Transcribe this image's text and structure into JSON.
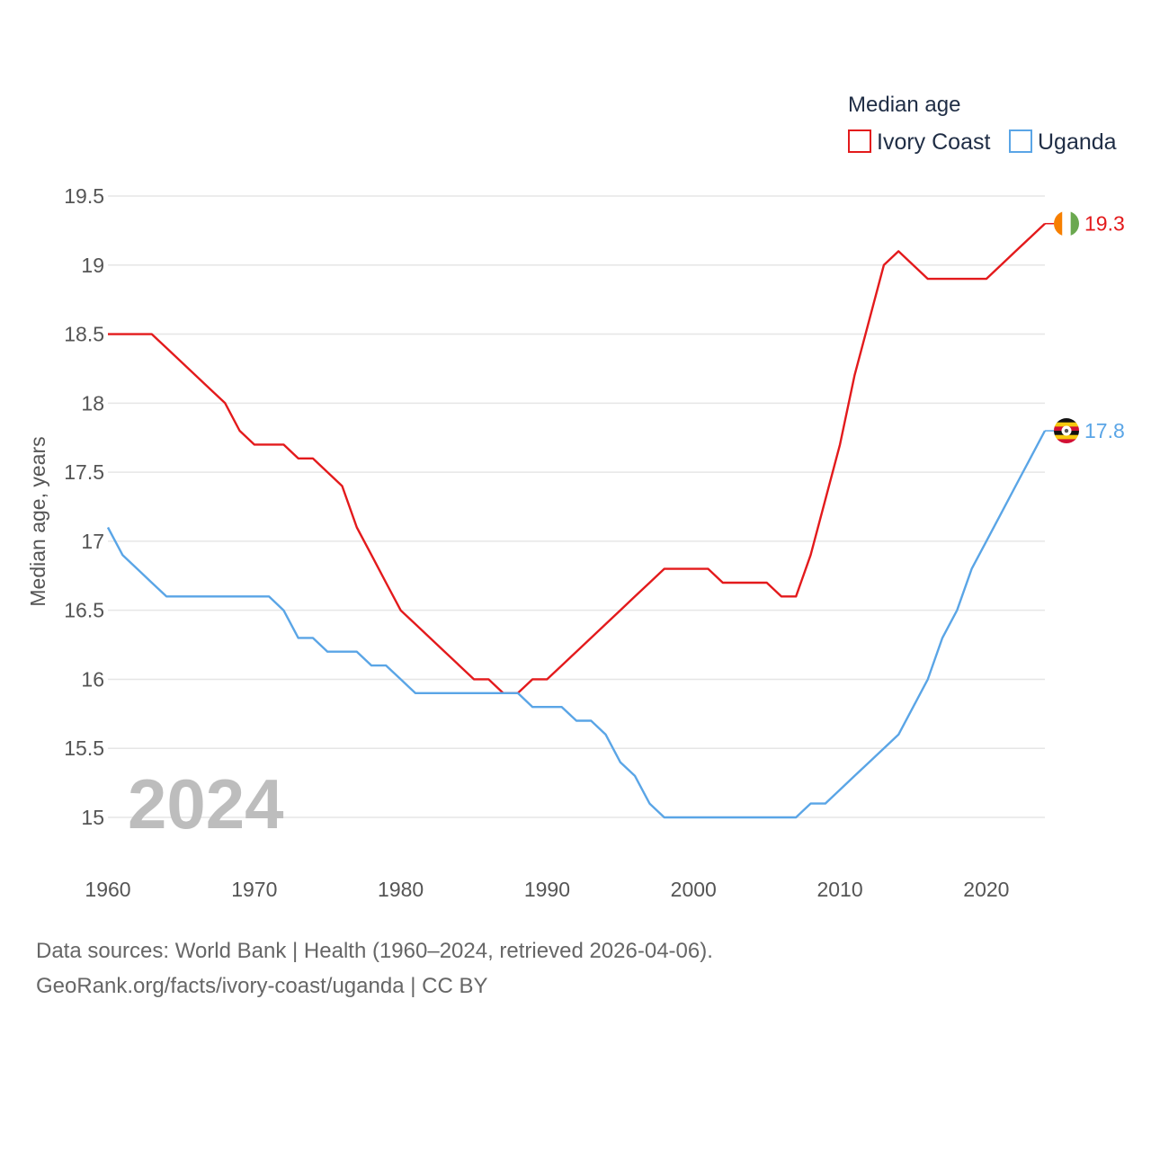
{
  "chart_data": {
    "type": "line",
    "legend_title": "Median age",
    "ylabel": "Median age, years",
    "xlabel": "",
    "ylim": [
      14.5,
      19.5
    ],
    "xlim": [
      1960,
      2024
    ],
    "y_ticks": [
      15,
      15.5,
      16,
      16.5,
      17,
      17.5,
      18,
      18.5,
      19,
      19.5
    ],
    "y_tick_labels": [
      "15",
      "15.5",
      "16",
      "16.5",
      "17",
      "17.5",
      "18",
      "18.5",
      "19",
      "19.5"
    ],
    "x_ticks": [
      1960,
      1970,
      1980,
      1990,
      2000,
      2010,
      2020
    ],
    "x_tick_labels": [
      "1960",
      "1970",
      "1980",
      "1990",
      "2000",
      "2010",
      "2020"
    ],
    "current_year": "2024",
    "legend_position": "top-right",
    "grid": true,
    "x": [
      1960,
      1961,
      1962,
      1963,
      1964,
      1965,
      1966,
      1967,
      1968,
      1969,
      1970,
      1971,
      1972,
      1973,
      1974,
      1975,
      1976,
      1977,
      1978,
      1979,
      1980,
      1981,
      1982,
      1983,
      1984,
      1985,
      1986,
      1987,
      1988,
      1989,
      1990,
      1991,
      1992,
      1993,
      1994,
      1995,
      1996,
      1997,
      1998,
      1999,
      2000,
      2001,
      2002,
      2003,
      2004,
      2005,
      2006,
      2007,
      2008,
      2009,
      2010,
      2011,
      2012,
      2013,
      2014,
      2015,
      2016,
      2017,
      2018,
      2019,
      2020,
      2021,
      2022,
      2023,
      2024
    ],
    "series": [
      {
        "name": "Ivory Coast",
        "color": "#e31a1c",
        "end_label": "19.3",
        "flag": "ivory-coast-flag",
        "values": [
          18.5,
          18.5,
          18.5,
          18.5,
          18.4,
          18.3,
          18.2,
          18.1,
          18.0,
          17.8,
          17.7,
          17.7,
          17.7,
          17.6,
          17.6,
          17.5,
          17.4,
          17.1,
          16.9,
          16.7,
          16.5,
          16.4,
          16.3,
          16.2,
          16.1,
          16.0,
          16.0,
          15.9,
          15.9,
          16.0,
          16.0,
          16.1,
          16.2,
          16.3,
          16.4,
          16.5,
          16.6,
          16.7,
          16.8,
          16.8,
          16.8,
          16.8,
          16.7,
          16.7,
          16.7,
          16.7,
          16.6,
          16.6,
          16.9,
          17.3,
          17.7,
          18.2,
          18.6,
          19.0,
          19.1,
          19.0,
          18.9,
          18.9,
          18.9,
          18.9,
          18.9,
          19.0,
          19.1,
          19.2,
          19.3
        ]
      },
      {
        "name": "Uganda",
        "color": "#5aa5e6",
        "end_label": "17.8",
        "flag": "uganda-flag",
        "values": [
          17.1,
          16.9,
          16.8,
          16.7,
          16.6,
          16.6,
          16.6,
          16.6,
          16.6,
          16.6,
          16.6,
          16.6,
          16.5,
          16.3,
          16.3,
          16.2,
          16.2,
          16.2,
          16.1,
          16.1,
          16.0,
          15.9,
          15.9,
          15.9,
          15.9,
          15.9,
          15.9,
          15.9,
          15.9,
          15.8,
          15.8,
          15.8,
          15.7,
          15.7,
          15.6,
          15.4,
          15.3,
          15.1,
          15.0,
          15.0,
          15.0,
          15.0,
          15.0,
          15.0,
          15.0,
          15.0,
          15.0,
          15.0,
          15.1,
          15.1,
          15.2,
          15.3,
          15.4,
          15.5,
          15.6,
          15.8,
          16.0,
          16.3,
          16.5,
          16.8,
          17.0,
          17.2,
          17.4,
          17.6,
          17.8
        ]
      }
    ]
  },
  "footer": {
    "line1": "Data sources: World Bank | Health (1960–2024, retrieved 2026-04-06).",
    "line2": "GeoRank.org/facts/ivory-coast/uganda | CC BY"
  }
}
